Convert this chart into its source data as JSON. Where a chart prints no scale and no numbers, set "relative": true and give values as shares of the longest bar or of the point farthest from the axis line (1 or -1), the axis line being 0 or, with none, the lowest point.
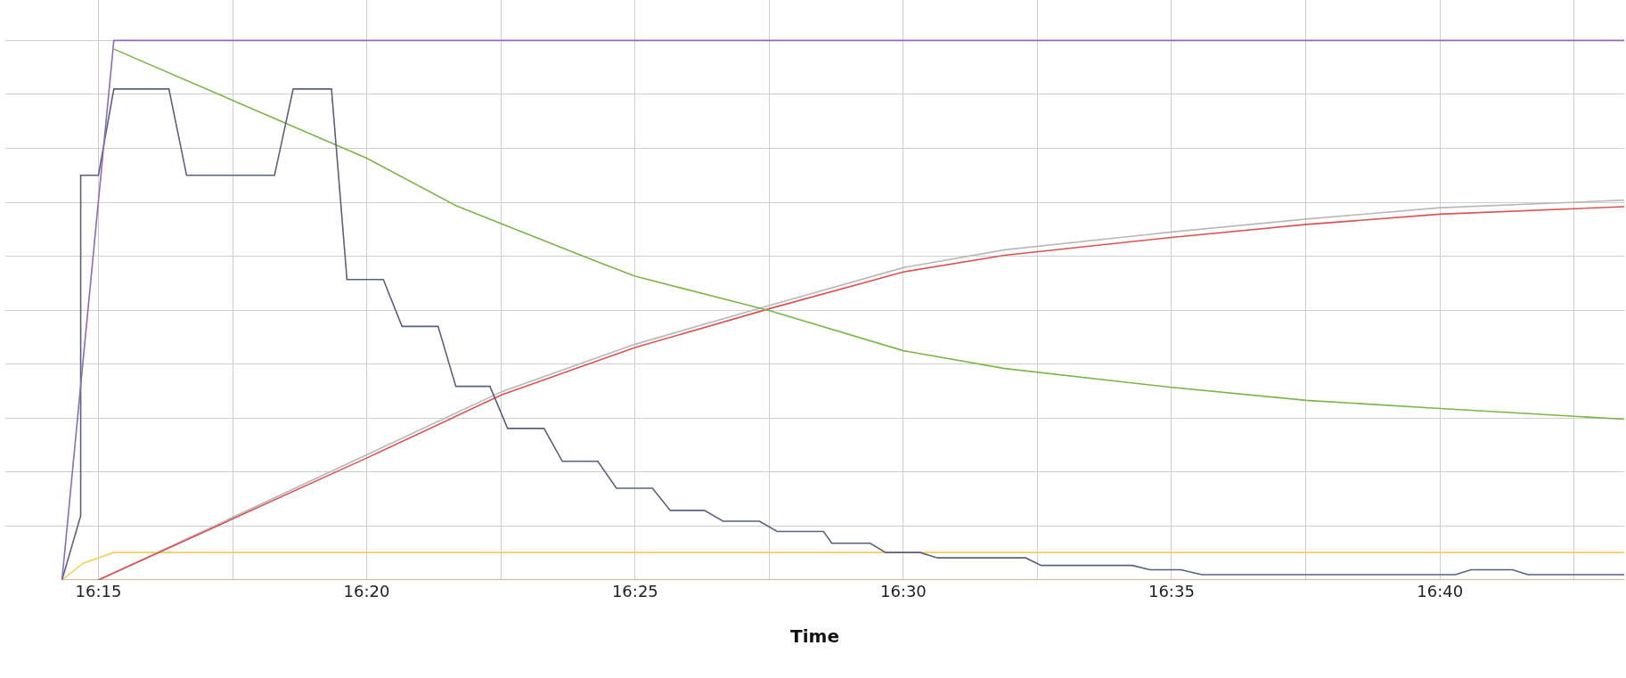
{
  "chart_data": {
    "type": "line",
    "relative": true,
    "xlabel": "Time",
    "grid": true,
    "marker": "none",
    "line_style": "solid",
    "xlim": [
      16.2211,
      16.7239
    ],
    "xticks": [
      {
        "value": 16.25,
        "label": "16:15"
      },
      {
        "value": 16.2917,
        "label": null
      },
      {
        "value": 16.3333,
        "label": "16:20"
      },
      {
        "value": 16.375,
        "label": null
      },
      {
        "value": 16.4167,
        "label": "16:25"
      },
      {
        "value": 16.4583,
        "label": null
      },
      {
        "value": 16.5,
        "label": "16:30"
      },
      {
        "value": 16.5417,
        "label": null
      },
      {
        "value": 16.5833,
        "label": "16:35"
      },
      {
        "value": 16.625,
        "label": null
      },
      {
        "value": 16.6667,
        "label": "16:40"
      },
      {
        "value": 16.7083,
        "label": null
      }
    ],
    "series": [
      {
        "color": "#d4956a",
        "x": [
          16.2387,
          16.7239
        ],
        "values": [
          0,
          0
        ]
      },
      {
        "color": "#f2cf5b",
        "x": [
          16.2387,
          16.2452,
          16.2548,
          16.7239
        ],
        "values": [
          0,
          0.031,
          0.051,
          0.051
        ]
      },
      {
        "color": "#b8b8b8",
        "x": [
          16.25,
          16.3333,
          16.3752,
          16.4167,
          16.4585,
          16.5,
          16.5315,
          16.5833,
          16.6252,
          16.6667,
          16.7239
        ],
        "values": [
          0,
          0.232,
          0.349,
          0.437,
          0.509,
          0.579,
          0.612,
          0.645,
          0.669,
          0.69,
          0.704
        ]
      },
      {
        "color": "#d9534f",
        "x": [
          16.25,
          16.3333,
          16.3752,
          16.4167,
          16.4585,
          16.5,
          16.5315,
          16.5833,
          16.6252,
          16.6667,
          16.7239
        ],
        "values": [
          0,
          0.226,
          0.343,
          0.431,
          0.503,
          0.571,
          0.602,
          0.635,
          0.659,
          0.678,
          0.692
        ]
      },
      {
        "color": "#7ab648",
        "x": [
          16.2548,
          16.3333,
          16.361,
          16.4044,
          16.4167,
          16.4585,
          16.5,
          16.5315,
          16.5833,
          16.6252,
          16.6667,
          16.7239
        ],
        "values": [
          0.984,
          0.782,
          0.694,
          0.591,
          0.563,
          0.499,
          0.425,
          0.392,
          0.357,
          0.333,
          0.318,
          0.298
        ]
      },
      {
        "color": "#5a6080",
        "x": [
          16.2387,
          16.2445,
          16.2445,
          16.25,
          16.2548,
          16.2719,
          16.2774,
          16.3047,
          16.3105,
          16.3224,
          16.3272,
          16.3385,
          16.3443,
          16.3555,
          16.361,
          16.3716,
          16.3771,
          16.3884,
          16.3941,
          16.4051,
          16.4109,
          16.4221,
          16.4276,
          16.4382,
          16.444,
          16.4553,
          16.4608,
          16.4752,
          16.4778,
          16.4897,
          16.4945,
          16.5052,
          16.5106,
          16.538,
          16.5428,
          16.5711,
          16.5766,
          16.5862,
          16.5927,
          16.6715,
          16.6763,
          16.6892,
          16.694,
          16.7239
        ],
        "values": [
          0,
          0.119,
          0.75,
          0.75,
          0.91,
          0.91,
          0.75,
          0.75,
          0.91,
          0.91,
          0.557,
          0.557,
          0.47,
          0.47,
          0.359,
          0.359,
          0.281,
          0.281,
          0.22,
          0.22,
          0.17,
          0.17,
          0.129,
          0.129,
          0.109,
          0.109,
          0.09,
          0.09,
          0.068,
          0.068,
          0.051,
          0.051,
          0.041,
          0.041,
          0.027,
          0.027,
          0.019,
          0.019,
          0.01,
          0.01,
          0.019,
          0.019,
          0.01,
          0.01
        ]
      },
      {
        "color": "#8e6bb5",
        "x": [
          16.2387,
          16.2548,
          16.7239
        ],
        "values": [
          0,
          1,
          1
        ]
      }
    ]
  }
}
